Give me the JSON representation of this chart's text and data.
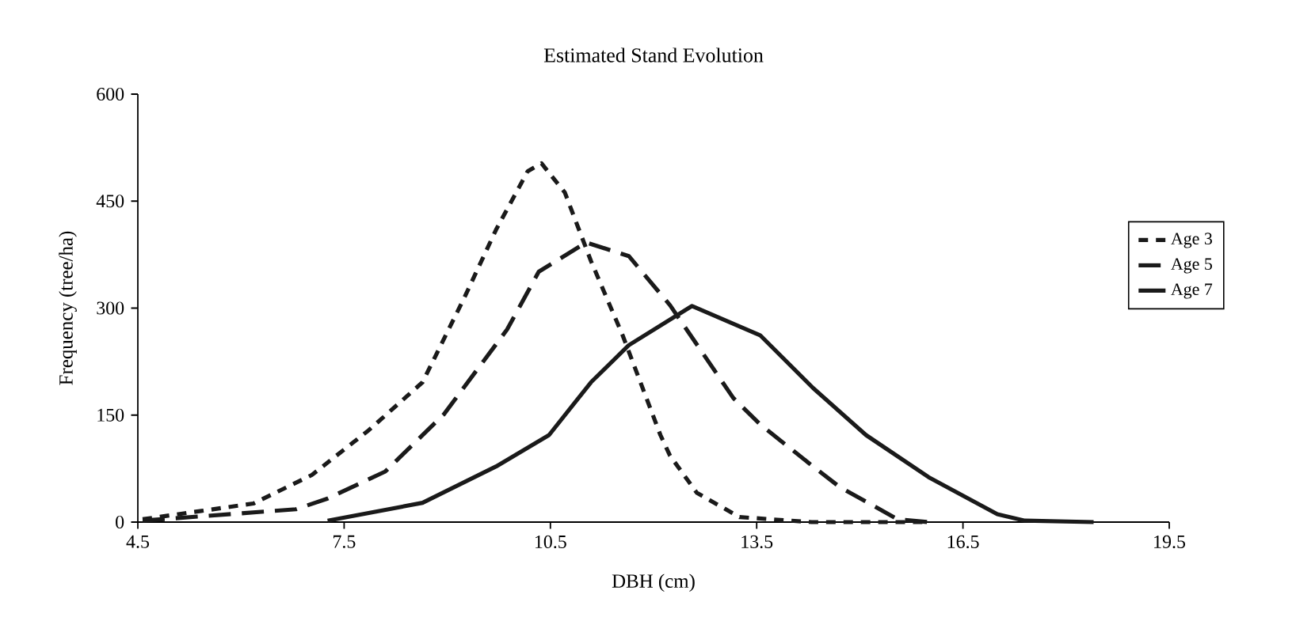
{
  "chart_data": {
    "type": "line",
    "title": "Estimated Stand Evolution",
    "xlabel": "DBH (cm)",
    "ylabel": "Frequency (tree/ha)",
    "xlim": [
      4.5,
      19.5
    ],
    "xticks": [
      4.5,
      7.5,
      10.5,
      13.5,
      16.5,
      19.5
    ],
    "ylim": [
      0,
      600
    ],
    "yticks": [
      0,
      150,
      300,
      450,
      600
    ],
    "grid": false,
    "legend": "right",
    "marker": "none",
    "series": [
      {
        "name": "Age 3",
        "color": "#1a1a1a",
        "line_style": "dotted",
        "x": [
          4.57,
          6.18,
          7.03,
          7.86,
          8.64,
          9.25,
          9.71,
          10.17,
          10.37,
          10.71,
          11.09,
          11.55,
          12.1,
          12.24,
          12.63,
          13.25,
          14.3,
          16.0
        ],
        "values": [
          4,
          26,
          66,
          129,
          196,
          315,
          410,
          492,
          503,
          462,
          366,
          262,
          122,
          93,
          41,
          7,
          0,
          0
        ]
      },
      {
        "name": "Age 5",
        "color": "#1a1a1a",
        "line_style": "dashed",
        "x": [
          4.57,
          6.8,
          7.26,
          8.1,
          8.95,
          9.87,
          10.33,
          11.02,
          11.64,
          12.24,
          13.16,
          13.55,
          14.32,
          14.71,
          15.55,
          16.0
        ],
        "values": [
          2,
          18,
          33,
          71,
          151,
          270,
          351,
          392,
          373,
          304,
          174,
          137,
          78,
          49,
          4,
          0
        ]
      },
      {
        "name": "Age 7",
        "color": "#1a1a1a",
        "line_style": "solid",
        "x": [
          7.26,
          8.64,
          9.71,
          10.48,
          11.09,
          11.64,
          12.56,
          13.55,
          14.32,
          15.09,
          16.0,
          17.0,
          17.4,
          18.4
        ],
        "values": [
          2,
          27,
          78,
          122,
          196,
          248,
          303,
          262,
          188,
          122,
          63,
          11,
          2,
          0
        ]
      }
    ]
  }
}
